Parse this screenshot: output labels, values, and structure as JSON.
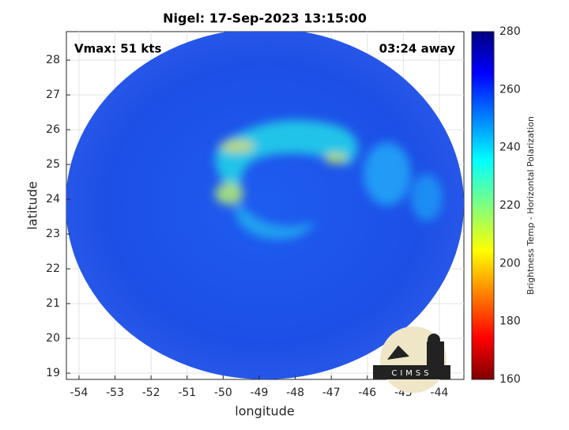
{
  "chart_data": {
    "type": "map",
    "title": "Nigel: 17-Sep-2023 13:15:00",
    "xlabel": "longitude",
    "ylabel": "latitude",
    "annotations": [
      "Vmax: 51 kts",
      "03:24 away"
    ],
    "xlim": [
      -54.35,
      -43.32
    ],
    "xticks": [
      -54,
      -53,
      -52,
      -51,
      -50,
      -49,
      -48,
      -47,
      -46,
      -45,
      -44
    ],
    "ylim": [
      18.82,
      28.82
    ],
    "yticks": [
      19,
      20,
      21,
      22,
      23,
      24,
      25,
      26,
      27,
      28
    ],
    "grid": true,
    "colorbar": {
      "label": "Brightness Temp - Horizontal Polarization",
      "lim": [
        160,
        280
      ],
      "ticks": [
        160,
        180,
        200,
        220,
        240,
        260,
        280
      ]
    },
    "logo": "CIMSS"
  }
}
